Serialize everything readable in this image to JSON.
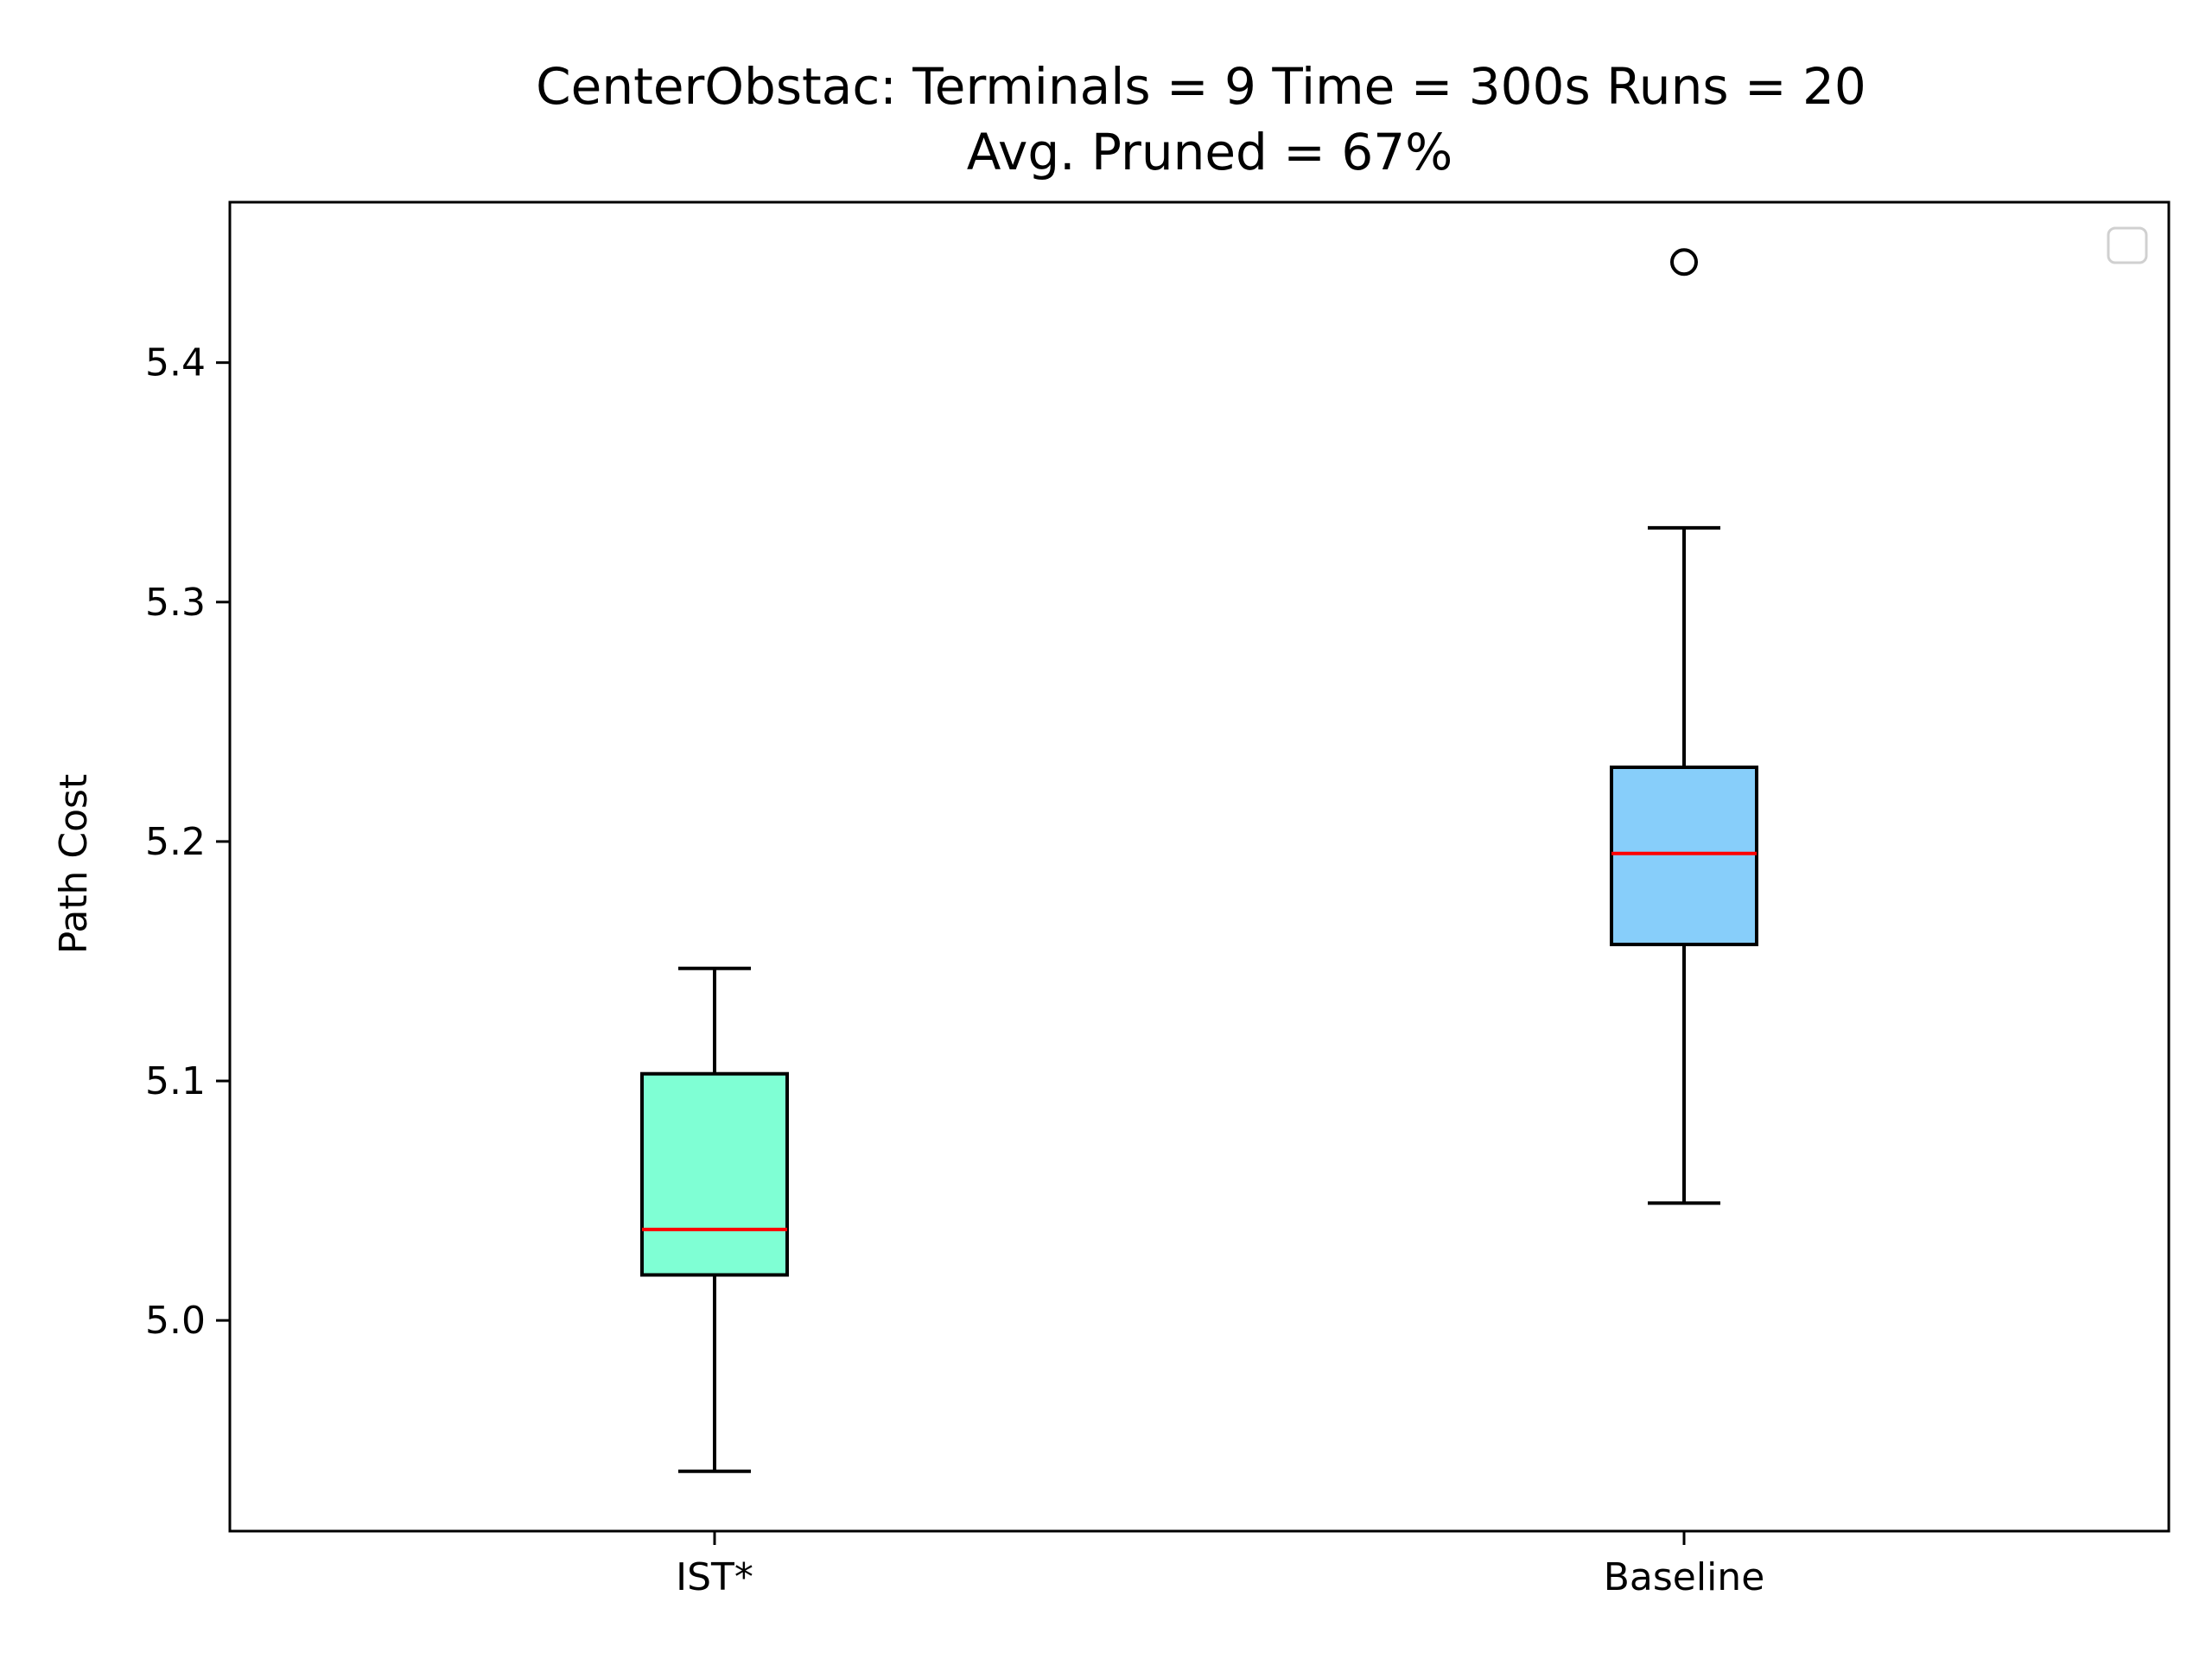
{
  "chart_data": {
    "type": "box",
    "title_lines": [
      "CenterObstac:  Terminals = 9  Time = 300s  Runs = 20",
      "Avg. Pruned = 67%"
    ],
    "xlabel": "",
    "ylabel": "Path Cost",
    "categories": [
      "IST*",
      "Baseline"
    ],
    "ylim": [
      4.912,
      5.467
    ],
    "yticks": [
      5.0,
      5.1,
      5.2,
      5.3,
      5.4
    ],
    "ytick_labels": [
      "5.0",
      "5.1",
      "5.2",
      "5.3",
      "5.4"
    ],
    "grid": false,
    "legend": {
      "placement": "upper right",
      "entries": []
    },
    "boxes": [
      {
        "name": "IST*",
        "whisker_low": 4.937,
        "q1": 5.019,
        "median": 5.038,
        "q3": 5.103,
        "whisker_high": 5.147,
        "outliers": [],
        "fill": "#7fffd4"
      },
      {
        "name": "Baseline",
        "whisker_low": 5.049,
        "q1": 5.157,
        "median": 5.195,
        "q3": 5.231,
        "whisker_high": 5.331,
        "outliers": [
          5.442
        ],
        "fill": "#87cefa"
      }
    ],
    "median_color": "#ff0000"
  }
}
